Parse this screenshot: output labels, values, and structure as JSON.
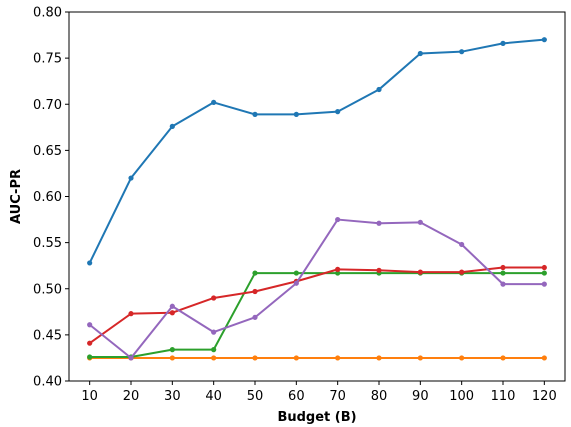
{
  "chart_data": {
    "type": "line",
    "xlabel": "Budget (B)",
    "ylabel": "AUC-PR",
    "x": [
      10,
      20,
      30,
      40,
      50,
      60,
      70,
      80,
      90,
      100,
      110,
      120
    ],
    "xlim": [
      5,
      125
    ],
    "ylim": [
      0.4,
      0.8
    ],
    "xticks": [
      "10",
      "20",
      "30",
      "40",
      "50",
      "60",
      "70",
      "80",
      "90",
      "100",
      "110",
      "120"
    ],
    "yticks": [
      "0.40",
      "0.45",
      "0.50",
      "0.55",
      "0.60",
      "0.65",
      "0.70",
      "0.75",
      "0.80"
    ],
    "grid": false,
    "series": [
      {
        "color": "#1f77b4",
        "values": [
          0.528,
          0.62,
          0.676,
          0.702,
          0.689,
          0.689,
          0.692,
          0.716,
          0.755,
          0.757,
          0.766,
          0.77
        ]
      },
      {
        "color": "#ff7f0e",
        "values": [
          0.425,
          0.425,
          0.425,
          0.425,
          0.425,
          0.425,
          0.425,
          0.425,
          0.425,
          0.425,
          0.425,
          0.425
        ]
      },
      {
        "color": "#2ca02c",
        "values": [
          0.426,
          0.426,
          0.434,
          0.434,
          0.517,
          0.517,
          0.517,
          0.517,
          0.517,
          0.517,
          0.517,
          0.517
        ]
      },
      {
        "color": "#d62728",
        "values": [
          0.441,
          0.473,
          0.474,
          0.49,
          0.497,
          0.508,
          0.521,
          0.52,
          0.518,
          0.518,
          0.523,
          0.523
        ]
      },
      {
        "color": "#9467bd",
        "values": [
          0.461,
          0.425,
          0.481,
          0.453,
          0.469,
          0.506,
          0.575,
          0.571,
          0.572,
          0.548,
          0.505,
          0.505
        ]
      }
    ]
  }
}
